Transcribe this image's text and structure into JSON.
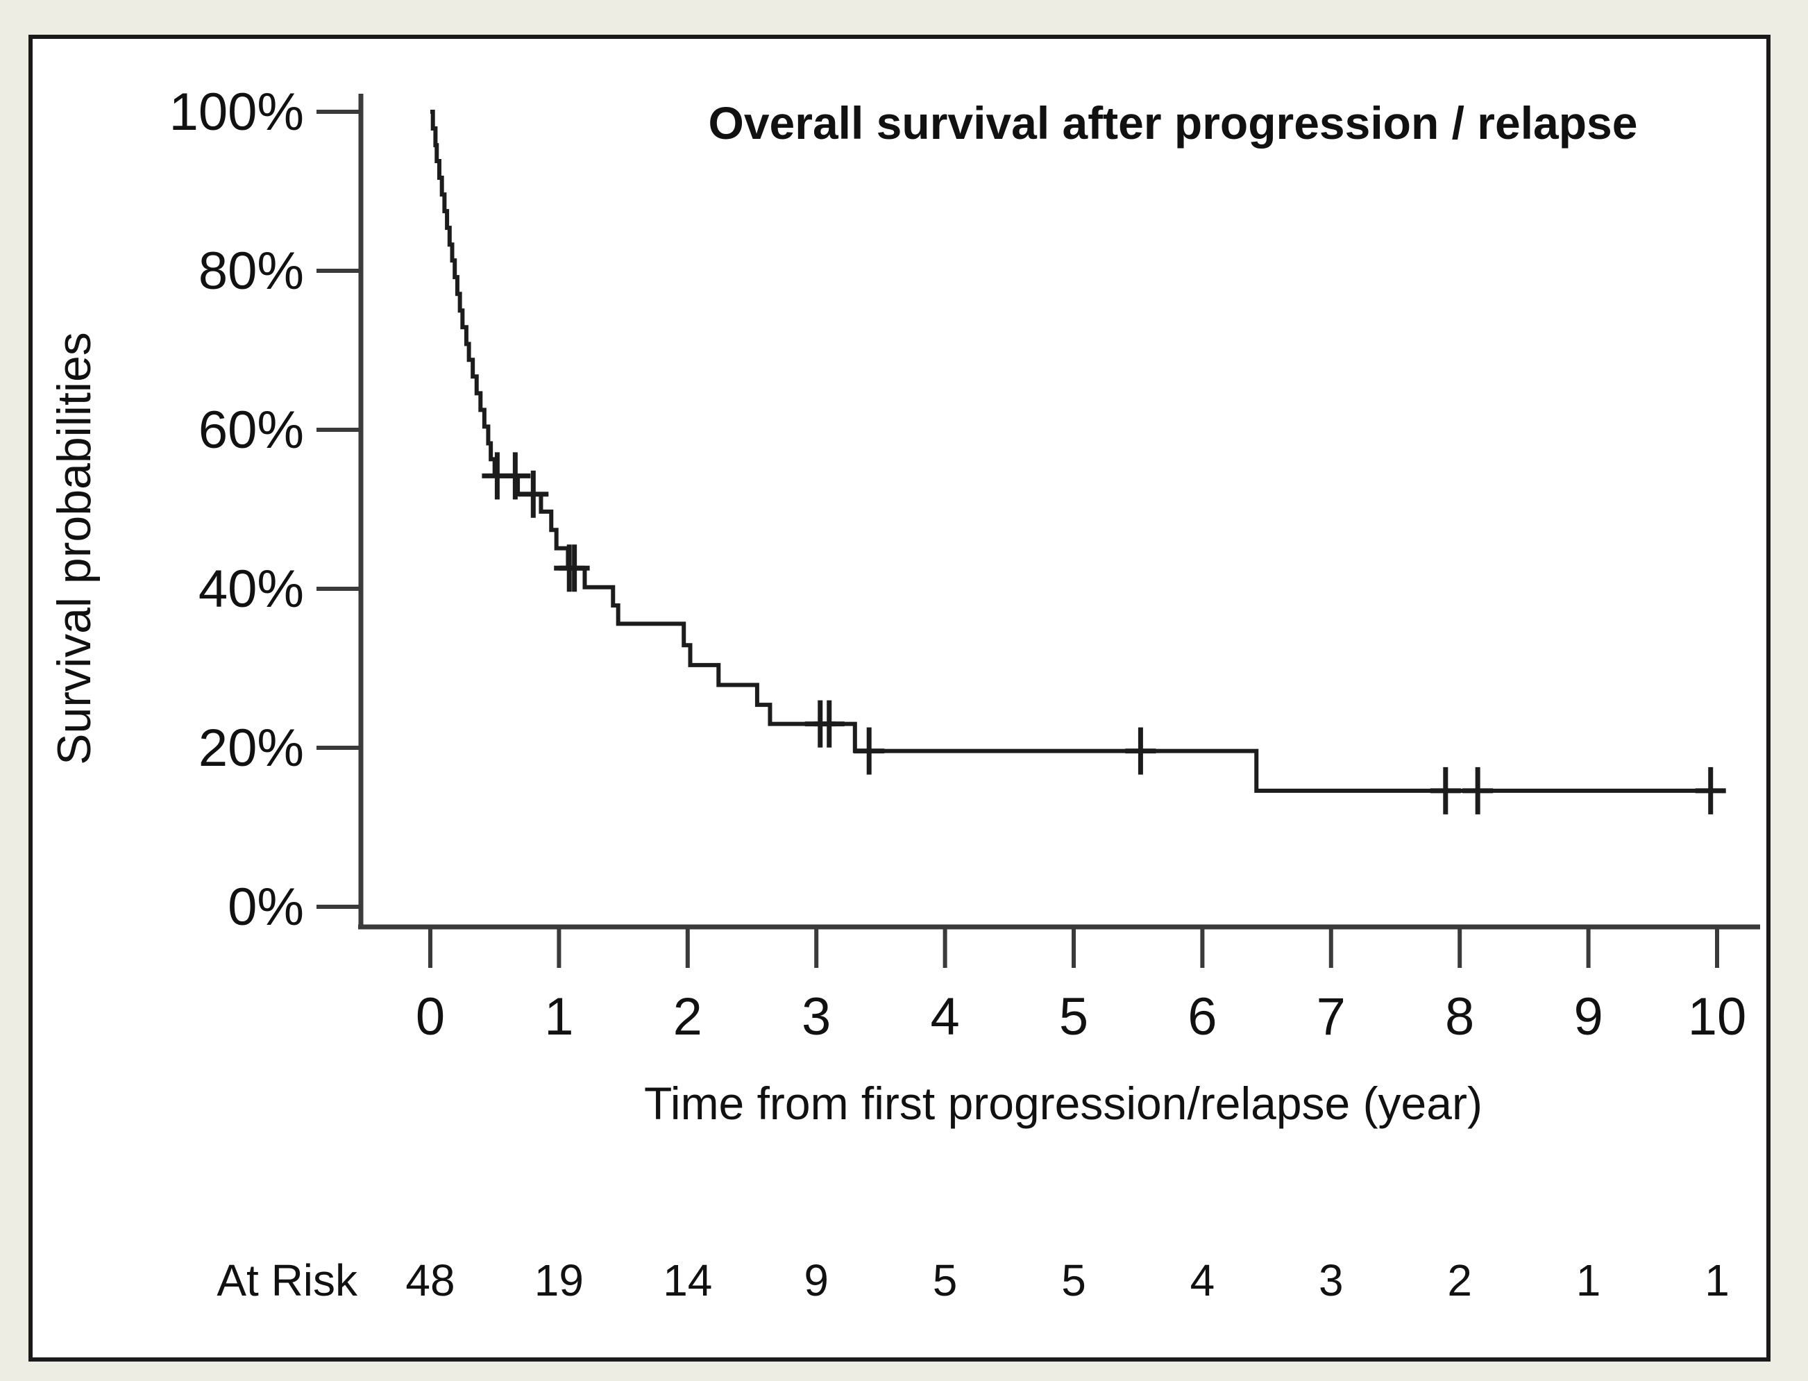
{
  "figure": {
    "background_color": "#eeede3",
    "plot_background": "#ffffff",
    "border_color": "#1a1a1a"
  },
  "chart_data": {
    "type": "line",
    "subtype": "kaplan-meier-step-curve",
    "title": "Overall survival after progression / relapse",
    "xlabel": "Time from first progression/relapse (year)",
    "ylabel": "Survival probabilities",
    "x_ticks": [
      0,
      1,
      2,
      3,
      4,
      5,
      6,
      7,
      8,
      9,
      10
    ],
    "y_ticks": [
      "0%",
      "20%",
      "40%",
      "60%",
      "80%",
      "100%"
    ],
    "y_tick_values": [
      0,
      20,
      40,
      60,
      80,
      100
    ],
    "xlim": [
      0,
      10.35
    ],
    "ylim": [
      0,
      100
    ],
    "grid": false,
    "legend": null,
    "curve_color": "#1c1c1c",
    "axis_color": "#3a3a3a",
    "text_color": "#111111",
    "km_steps": [
      [
        0.0,
        100.0
      ],
      [
        0.02,
        97.9
      ],
      [
        0.04,
        95.8
      ],
      [
        0.05,
        93.8
      ],
      [
        0.07,
        91.7
      ],
      [
        0.09,
        89.6
      ],
      [
        0.11,
        87.5
      ],
      [
        0.13,
        85.4
      ],
      [
        0.15,
        83.3
      ],
      [
        0.17,
        81.3
      ],
      [
        0.19,
        79.2
      ],
      [
        0.21,
        77.1
      ],
      [
        0.23,
        75.0
      ],
      [
        0.25,
        72.9
      ],
      [
        0.28,
        70.8
      ],
      [
        0.3,
        68.8
      ],
      [
        0.33,
        66.7
      ],
      [
        0.36,
        64.6
      ],
      [
        0.39,
        62.5
      ],
      [
        0.42,
        60.4
      ],
      [
        0.45,
        58.3
      ],
      [
        0.47,
        56.3
      ],
      [
        0.5,
        54.2
      ],
      [
        0.68,
        51.9
      ],
      [
        0.86,
        49.7
      ],
      [
        0.94,
        47.4
      ],
      [
        0.98,
        45.1
      ],
      [
        1.07,
        42.6
      ],
      [
        1.2,
        40.2
      ],
      [
        1.42,
        37.9
      ],
      [
        1.46,
        35.6
      ],
      [
        1.97,
        32.9
      ],
      [
        2.02,
        30.4
      ],
      [
        2.24,
        27.9
      ],
      [
        2.54,
        25.4
      ],
      [
        2.64,
        23.0
      ],
      [
        3.3,
        19.6
      ],
      [
        6.42,
        14.6
      ]
    ],
    "end_time": 10.02,
    "censor_marks": [
      [
        0.52,
        54.2
      ],
      [
        0.66,
        54.2
      ],
      [
        0.8,
        51.9
      ],
      [
        1.08,
        42.6
      ],
      [
        1.12,
        42.6
      ],
      [
        3.03,
        23.0
      ],
      [
        3.1,
        23.0
      ],
      [
        3.41,
        19.6
      ],
      [
        5.52,
        19.6
      ],
      [
        7.89,
        14.6
      ],
      [
        8.14,
        14.6
      ],
      [
        9.95,
        14.6
      ]
    ],
    "at_risk": {
      "label": "At Risk",
      "times": [
        0,
        1,
        2,
        3,
        4,
        5,
        6,
        7,
        8,
        9,
        10
      ],
      "values": [
        48,
        19,
        14,
        9,
        5,
        5,
        4,
        3,
        2,
        1,
        1
      ]
    }
  }
}
